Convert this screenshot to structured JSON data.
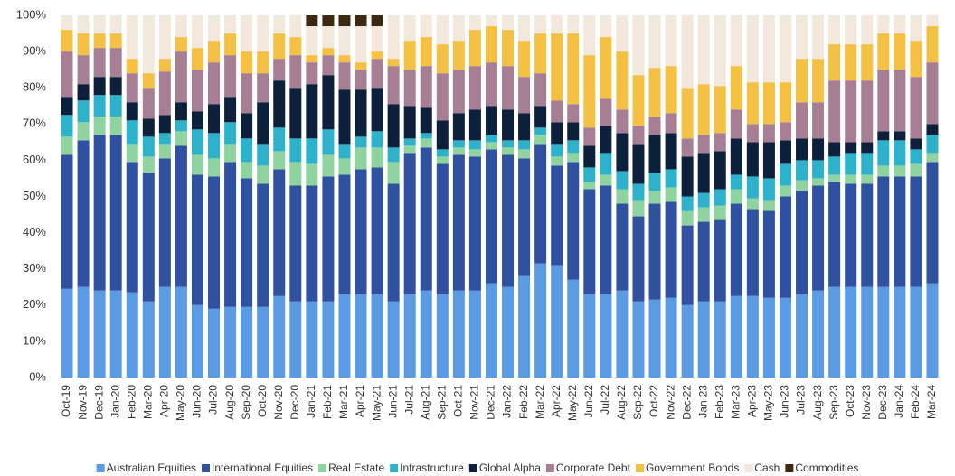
{
  "chart_data": {
    "type": "stacked-bar",
    "categories": [
      "Oct-19",
      "Nov-19",
      "Dec-19",
      "Jan-20",
      "Feb-20",
      "Mar-20",
      "Apr-20",
      "May-20",
      "Jun-20",
      "Jul-20",
      "Aug-20",
      "Sep-20",
      "Oct-20",
      "Nov-20",
      "Dec-20",
      "Jan-21",
      "Feb-21",
      "Mar-21",
      "Apr-21",
      "May-21",
      "Jun-21",
      "Jul-21",
      "Aug-21",
      "Sep-21",
      "Oct-21",
      "Nov-21",
      "Dec-21",
      "Jan-22",
      "Feb-22",
      "Mar-22",
      "Apr-22",
      "May-22",
      "Jun-22",
      "Jul-22",
      "Aug-22",
      "Sep-22",
      "Oct-22",
      "Nov-22",
      "Dec-22",
      "Jan-23",
      "Feb-23",
      "Mar-23",
      "Apr-23",
      "May-23",
      "Jun-23",
      "Jul-23",
      "Aug-23",
      "Sep-23",
      "Oct-23",
      "Nov-23",
      "Dec-23",
      "Jan-24",
      "Feb-24",
      "Mar-24"
    ],
    "series": [
      {
        "name": "Australian Equities",
        "color": "#5b9be3",
        "values": [
          24.5,
          25,
          24,
          24,
          23.5,
          21,
          25,
          25,
          20,
          19,
          19.5,
          19.5,
          19.5,
          22.5,
          21,
          21,
          21,
          23,
          23,
          23,
          21,
          23,
          24,
          23,
          24,
          24,
          26,
          25,
          28,
          31.5,
          31,
          27,
          23,
          23,
          24,
          21,
          21.5,
          22,
          20,
          21,
          21,
          22.5,
          22.5,
          22,
          22,
          23,
          24,
          25,
          25,
          25,
          25,
          25,
          25,
          26
        ]
      },
      {
        "name": "International Equities",
        "color": "#2f51a0",
        "values": [
          37,
          40.5,
          43,
          43,
          36,
          35.5,
          35.5,
          39,
          36,
          36.5,
          40,
          35.5,
          34,
          35,
          32,
          32,
          34.5,
          33,
          34.5,
          35,
          32.5,
          39,
          39.5,
          36,
          37.5,
          37,
          37,
          36.5,
          32.5,
          33,
          27.5,
          32.5,
          29,
          30,
          24,
          23.5,
          26.5,
          26.5,
          22,
          22,
          22.5,
          25.5,
          24,
          24,
          28,
          28.5,
          29,
          29,
          28.5,
          28.5,
          30.5,
          30.5,
          30.5,
          33.5
        ]
      },
      {
        "name": "Real Estate",
        "color": "#8fd3a0",
        "values": [
          5,
          5,
          5,
          5,
          5,
          4.5,
          4,
          4,
          5.5,
          5,
          5,
          4.5,
          5,
          5,
          6.5,
          6,
          6,
          4.5,
          6,
          5.5,
          6,
          2,
          2.5,
          2,
          2,
          2,
          2,
          2,
          2.5,
          2.5,
          2.5,
          2.5,
          2,
          3,
          4,
          4.5,
          3.5,
          4,
          4,
          4,
          4,
          4,
          3,
          3,
          3,
          3,
          2,
          2,
          2.5,
          2.5,
          3,
          3,
          3.5,
          2.5
        ]
      },
      {
        "name": "Infrastructure",
        "color": "#2eb2cc",
        "values": [
          6,
          6,
          6,
          6,
          6.5,
          5.5,
          3,
          3,
          7,
          7,
          6,
          6.5,
          6,
          6.5,
          6.5,
          7,
          7,
          4,
          3,
          4.5,
          4,
          2,
          1.5,
          2,
          2,
          2.5,
          2,
          2,
          2.5,
          2,
          3.5,
          3.5,
          4,
          6,
          5,
          4.5,
          5,
          5,
          4,
          4,
          4.5,
          4,
          6,
          6,
          6,
          5.5,
          5,
          5,
          6,
          6,
          7,
          7,
          4,
          5
        ]
      },
      {
        "name": "Global Alpha",
        "color": "#0c1f3b",
        "values": [
          5,
          4.5,
          5,
          5,
          5,
          5,
          5,
          5,
          5,
          8,
          7,
          7,
          11.5,
          13,
          14,
          15,
          15,
          15,
          13,
          12,
          12,
          9,
          7,
          8,
          7.5,
          8.5,
          8,
          8.5,
          7.5,
          6,
          6,
          5,
          6,
          7.5,
          10.5,
          11,
          10.5,
          10,
          11,
          11,
          10.5,
          10,
          9.5,
          10,
          6.5,
          6,
          6,
          4,
          3,
          3,
          2.5,
          2.5,
          3,
          3
        ]
      },
      {
        "name": "Corporate Debt",
        "color": "#a77f95",
        "values": [
          12.5,
          8,
          8,
          8,
          8,
          8.5,
          12,
          14,
          11.5,
          11.5,
          11.5,
          11,
          8,
          6,
          9,
          6,
          5.5,
          7.5,
          5.5,
          8,
          10.5,
          10,
          11.5,
          13,
          12,
          12,
          12,
          12,
          10,
          9,
          6,
          5,
          5,
          7.5,
          6.5,
          5,
          5,
          5.5,
          5,
          5,
          5,
          8,
          5,
          5,
          5,
          10,
          10,
          17,
          17,
          17,
          17,
          17,
          17,
          17
        ]
      },
      {
        "name": "Government Bonds",
        "color": "#f4c145",
        "values": [
          6,
          6,
          4,
          4,
          4,
          4,
          3.5,
          4,
          6,
          6,
          6,
          6,
          6,
          7,
          5,
          2,
          2,
          2,
          2,
          2,
          2,
          8,
          8,
          8,
          8,
          10,
          10,
          10,
          10,
          11,
          18.5,
          19.5,
          20,
          17,
          16,
          14,
          13.5,
          13,
          14,
          14,
          13,
          12,
          11.5,
          11.5,
          11,
          12,
          12,
          10,
          10,
          10,
          10,
          10,
          10,
          10
        ]
      },
      {
        "name": "Cash",
        "color": "#f2e8dc",
        "values": [
          4,
          5,
          5,
          5,
          12,
          16,
          12,
          6,
          9,
          7,
          5,
          10,
          10,
          5,
          6,
          8,
          6,
          8,
          10,
          7,
          12,
          7,
          6,
          8,
          7,
          4,
          3,
          4,
          7,
          5,
          5,
          5,
          11,
          6,
          10,
          16.5,
          14.5,
          14,
          20,
          19,
          19.5,
          14,
          18.5,
          18.5,
          18.5,
          12,
          12,
          8,
          8,
          8,
          5,
          5,
          7,
          3
        ]
      },
      {
        "name": "Commodities",
        "color": "#3d2912",
        "values": [
          null,
          null,
          null,
          null,
          null,
          null,
          null,
          null,
          null,
          null,
          null,
          null,
          null,
          null,
          null,
          3,
          3,
          3,
          3,
          3,
          null,
          null,
          null,
          null,
          null,
          null,
          null,
          null,
          null,
          null,
          null,
          null,
          null,
          null,
          null,
          null,
          null,
          null,
          null,
          null,
          null,
          null,
          null,
          null,
          null,
          null,
          null,
          null,
          null,
          null,
          null,
          null,
          null,
          null
        ]
      }
    ],
    "ylim": [
      0,
      100
    ],
    "yticks": [
      {
        "value": 0,
        "label": "0%"
      },
      {
        "value": 10,
        "label": "10%"
      },
      {
        "value": 20,
        "label": "20%"
      },
      {
        "value": 30,
        "label": "30%"
      },
      {
        "value": 40,
        "label": "40%"
      },
      {
        "value": 50,
        "label": "50%"
      },
      {
        "value": 60,
        "label": "60%"
      },
      {
        "value": 70,
        "label": "70%"
      },
      {
        "value": 80,
        "label": "80%"
      },
      {
        "value": 90,
        "label": "90%"
      },
      {
        "value": 100,
        "label": "100%"
      }
    ],
    "legend": "bottom"
  }
}
